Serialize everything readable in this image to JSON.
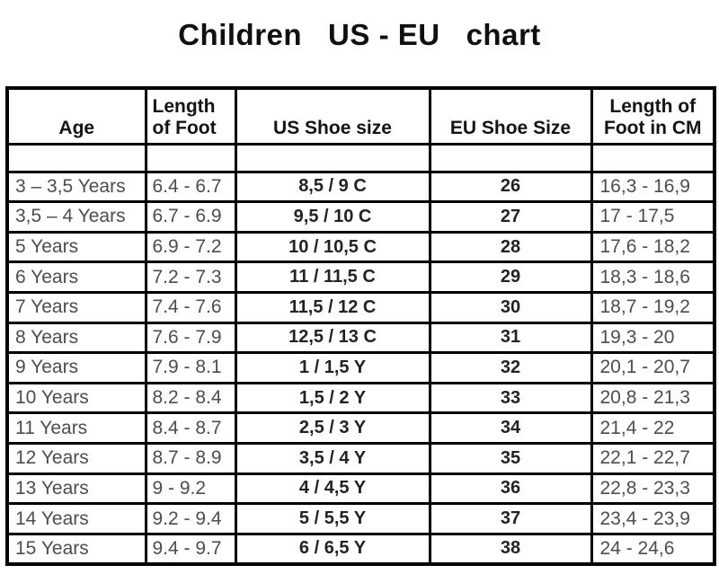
{
  "title": "Children   US - EU   chart",
  "chart_data": {
    "type": "table",
    "title": "Children US - EU chart",
    "columns": [
      "Age",
      "Length of Foot",
      "US Shoe size",
      "EU Shoe Size",
      "Length of Foot in CM"
    ],
    "rows": [
      [
        "3 – 3,5 Years",
        "6.4 - 6.7",
        "8,5 / 9 C",
        "26",
        "16,3 - 16,9"
      ],
      [
        "3,5 – 4 Years",
        "6.7 - 6.9",
        "9,5 / 10 C",
        "27",
        "17 - 17,5"
      ],
      [
        "5 Years",
        "6.9 - 7.2",
        "10 / 10,5 C",
        "28",
        "17,6 - 18,2"
      ],
      [
        "6 Years",
        "7.2 - 7.3",
        "11 / 11,5 C",
        "29",
        "18,3 - 18,6"
      ],
      [
        "7 Years",
        "7.4 - 7.6",
        "11,5 / 12 C",
        "30",
        "18,7 - 19,2"
      ],
      [
        "8 Years",
        "7.6 - 7.9",
        "12,5 / 13 C",
        "31",
        "19,3 - 20"
      ],
      [
        "9 Years",
        "7.9 - 8.1",
        "1 / 1,5 Y",
        "32",
        "20,1 - 20,7"
      ],
      [
        "10 Years",
        "8.2 - 8.4",
        "1,5 / 2 Y",
        "33",
        "20,8 - 21,3"
      ],
      [
        "11 Years",
        "8.4 - 8.7",
        "2,5 / 3 Y",
        "34",
        "21,4 - 22"
      ],
      [
        "12 Years",
        "8.7 - 8.9",
        "3,5 / 4 Y",
        "35",
        "22,1 - 22,7"
      ],
      [
        "13 Years",
        "9 - 9.2",
        "4 / 4,5 Y",
        "36",
        "22,8 - 23,3"
      ],
      [
        "14 Years",
        "9.2 - 9.4",
        "5 / 5,5 Y",
        "37",
        "23,4 - 23,9"
      ],
      [
        "15 Years",
        "9.4 - 9.7",
        "6 / 6,5 Y",
        "38",
        "24 - 24,6"
      ]
    ]
  },
  "table": {
    "header_lines": [
      [
        "",
        "Age"
      ],
      [
        "Length",
        "of Foot"
      ],
      [
        "",
        "US Shoe size"
      ],
      [
        "",
        "EU Shoe Size"
      ],
      [
        "Length of",
        "Foot in CM"
      ]
    ],
    "col_keys": [
      "age",
      "foot-length-inch",
      "us-shoe-size",
      "eu-shoe-size",
      "foot-length-cm"
    ]
  },
  "colors": {
    "background": "#ffffff",
    "border": "#000000",
    "header_text": "#141418",
    "data_text": "#4c4c52",
    "bold_text": "#222228"
  }
}
